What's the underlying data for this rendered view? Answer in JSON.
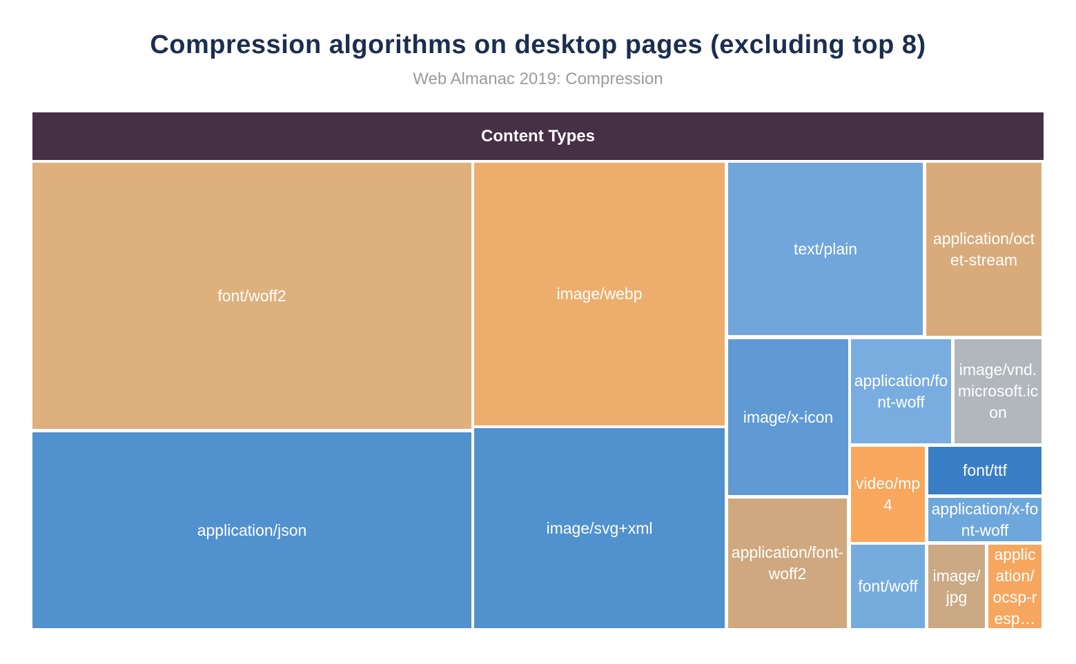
{
  "title": "Compression algorithms on desktop pages (excluding top 8)",
  "subtitle": "Web Almanac 2019: Compression",
  "chart_data": {
    "type": "treemap",
    "header": "Content Types",
    "title": "Compression algorithms on desktop pages (excluding top 8)",
    "subtitle": "Web Almanac 2019: Compression",
    "legend_position": "none",
    "values_labeled_on_chart": false,
    "palette": {
      "header_bg": "#463046",
      "title_color": "#1c2e4f",
      "subtitle_color": "#9b9b9b",
      "label_color": "#ffffff",
      "gap_color": "#ffffff"
    },
    "cells": [
      {
        "label": "font/woff2",
        "color": "#deb07c",
        "relative_area_pct": 25.5
      },
      {
        "label": "application/json",
        "color": "#5191ce",
        "relative_area_pct": 18.8
      },
      {
        "label": "image/webp",
        "color": "#edae6d",
        "relative_area_pct": 14.4
      },
      {
        "label": "image/svg+xml",
        "color": "#5191ce",
        "relative_area_pct": 10.9
      },
      {
        "label": "text/plain",
        "color": "#70a6da",
        "relative_area_pct": 7.3
      },
      {
        "label": "application/octet-stream",
        "color": "#d9ab7b",
        "relative_area_pct": 4.4
      },
      {
        "label": "image/x-icon",
        "color": "#5f9ad5",
        "relative_area_pct": 4.1
      },
      {
        "label": "application/font-woff",
        "color": "#79ade0",
        "relative_area_pct": 2.3
      },
      {
        "label": "image/vnd.microsoft.icon",
        "color": "#b1b7bc",
        "relative_area_pct": 2.0
      },
      {
        "label": "video/mp4",
        "color": "#f8a75c",
        "relative_area_pct": 1.5
      },
      {
        "label": "font/ttf",
        "color": "#3a7ec5",
        "relative_area_pct": 1.2
      },
      {
        "label": "application/x-font-woff",
        "color": "#6ea7db",
        "relative_area_pct": 1.1
      },
      {
        "label": "application/font-woff2",
        "color": "#cfa87f",
        "relative_area_pct": 3.4
      },
      {
        "label": "font/woff",
        "color": "#76abde",
        "relative_area_pct": 1.3
      },
      {
        "label": "image/jpg",
        "color": "#cba984",
        "relative_area_pct": 1.0
      },
      {
        "label": "application/ocsp-resp…",
        "color": "#f6a65e",
        "relative_area_pct": 1.0
      }
    ]
  }
}
